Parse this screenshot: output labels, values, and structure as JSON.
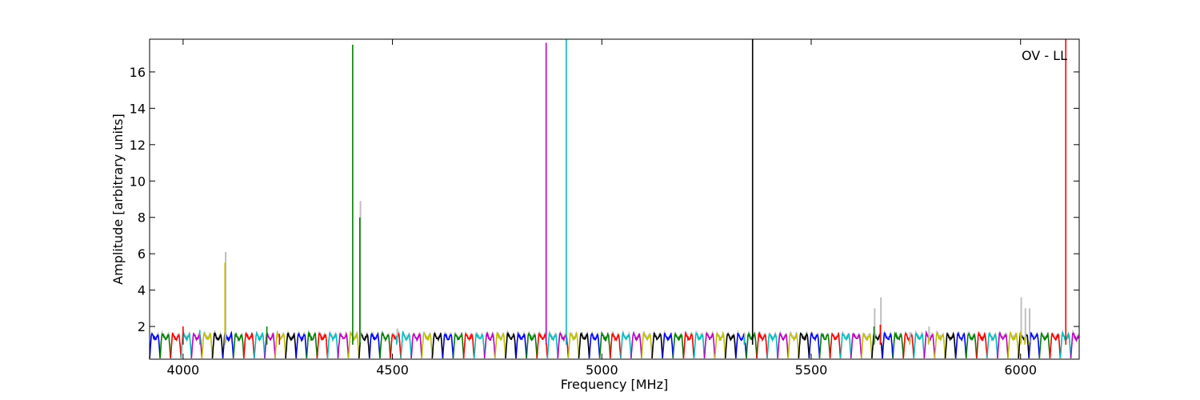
{
  "chart_data": {
    "type": "line",
    "title": "",
    "annotation": "OV - LL",
    "xlabel": "Frequency [MHz]",
    "ylabel": "Amplitude [arbitrary units]",
    "xlim": [
      3920,
      6140
    ],
    "ylim": [
      0.2,
      17.8
    ],
    "x_ticks": [
      4000,
      4500,
      5000,
      5500,
      6000
    ],
    "y_ticks": [
      2,
      4,
      6,
      8,
      10,
      12,
      14,
      16
    ],
    "grid": false,
    "legend": "none",
    "band_start": 3920,
    "band_width": 25,
    "band_colors": [
      "#0000ff",
      "#008000",
      "#ff0000",
      "#00bfbf",
      "#bf00bf",
      "#bfbf00",
      "#000000"
    ],
    "raw_color": "#bfbfbf",
    "spikes": [
      {
        "x": 4000,
        "y": 2.0,
        "color": "#ff0000"
      },
      {
        "x": 4040,
        "y": 1.8,
        "color": "#00bfbf"
      },
      {
        "x": 4100,
        "y": 5.5,
        "color": "#bfbf00",
        "raw": 6.1
      },
      {
        "x": 4200,
        "y": 2.0,
        "color": "#008000"
      },
      {
        "x": 4230,
        "y": 1.6,
        "color": "#ff0000"
      },
      {
        "x": 4405,
        "y": 17.5,
        "color": "#008000"
      },
      {
        "x": 4422,
        "y": 8.0,
        "color": "#008000",
        "raw": 8.9
      },
      {
        "x": 4510,
        "y": 1.5,
        "color": "#00bfbf",
        "raw": 1.9
      },
      {
        "x": 4867,
        "y": 17.6,
        "color": "#bf00bf"
      },
      {
        "x": 4915,
        "y": 17.8,
        "color": "#00bfbf"
      },
      {
        "x": 5360,
        "y": 17.8,
        "color": "#000000"
      },
      {
        "x": 5340,
        "y": 1.4,
        "color": "#00bfbf",
        "raw": 1.6
      },
      {
        "x": 5650,
        "y": 2.0,
        "color": "#008000",
        "raw": 3.0
      },
      {
        "x": 5665,
        "y": 2.1,
        "color": "#ff0000",
        "raw": 3.6
      },
      {
        "x": 5735,
        "y": 1.3,
        "color": "#bfbf00",
        "raw": 1.7
      },
      {
        "x": 5780,
        "y": 1.4,
        "color": "#bfbf00",
        "raw": 2.0
      },
      {
        "x": 6000,
        "y": 1.7,
        "color": "#bfbf00",
        "raw": 3.6
      },
      {
        "x": 6010,
        "y": 1.4,
        "color": "#bfbf00",
        "raw": 3.0
      },
      {
        "x": 6020,
        "y": 1.2,
        "color": "#bfbf00",
        "raw": 3.0
      },
      {
        "x": 6108,
        "y": 17.8,
        "color": "#ff0000"
      }
    ]
  }
}
